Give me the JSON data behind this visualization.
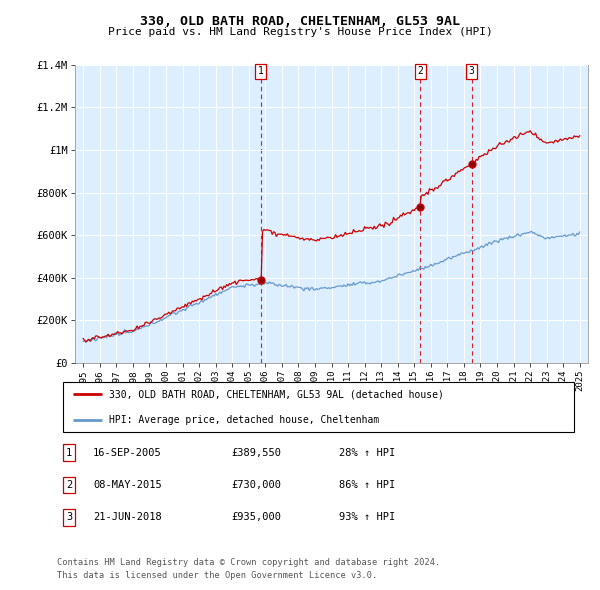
{
  "title": "330, OLD BATH ROAD, CHELTENHAM, GL53 9AL",
  "subtitle": "Price paid vs. HM Land Registry's House Price Index (HPI)",
  "legend_label_red": "330, OLD BATH ROAD, CHELTENHAM, GL53 9AL (detached house)",
  "legend_label_blue": "HPI: Average price, detached house, Cheltenham",
  "footer1": "Contains HM Land Registry data © Crown copyright and database right 2024.",
  "footer2": "This data is licensed under the Open Government Licence v3.0.",
  "transactions": [
    {
      "num": 1,
      "date": "16-SEP-2005",
      "price": 389550,
      "pct": "28%",
      "dir": "↑"
    },
    {
      "num": 2,
      "date": "08-MAY-2015",
      "price": 730000,
      "pct": "86%",
      "dir": "↑"
    },
    {
      "num": 3,
      "date": "21-JUN-2018",
      "price": 935000,
      "pct": "93%",
      "dir": "↑"
    }
  ],
  "vline_dates": [
    2005.72,
    2015.36,
    2018.47
  ],
  "ylim": [
    0,
    1400000
  ],
  "yticks": [
    0,
    200000,
    400000,
    600000,
    800000,
    1000000,
    1200000,
    1400000
  ],
  "ytick_labels": [
    "£0",
    "£200K",
    "£400K",
    "£600K",
    "£800K",
    "£1M",
    "£1.2M",
    "£1.4M"
  ],
  "xlim_start": 1994.5,
  "xlim_end": 2025.5,
  "red_color": "#cc0000",
  "blue_color": "#6699cc",
  "chart_bg_color": "#ddeeff",
  "vline_color": "#cc0000",
  "grid_color": "#ffffff",
  "background_color": "#ffffff"
}
